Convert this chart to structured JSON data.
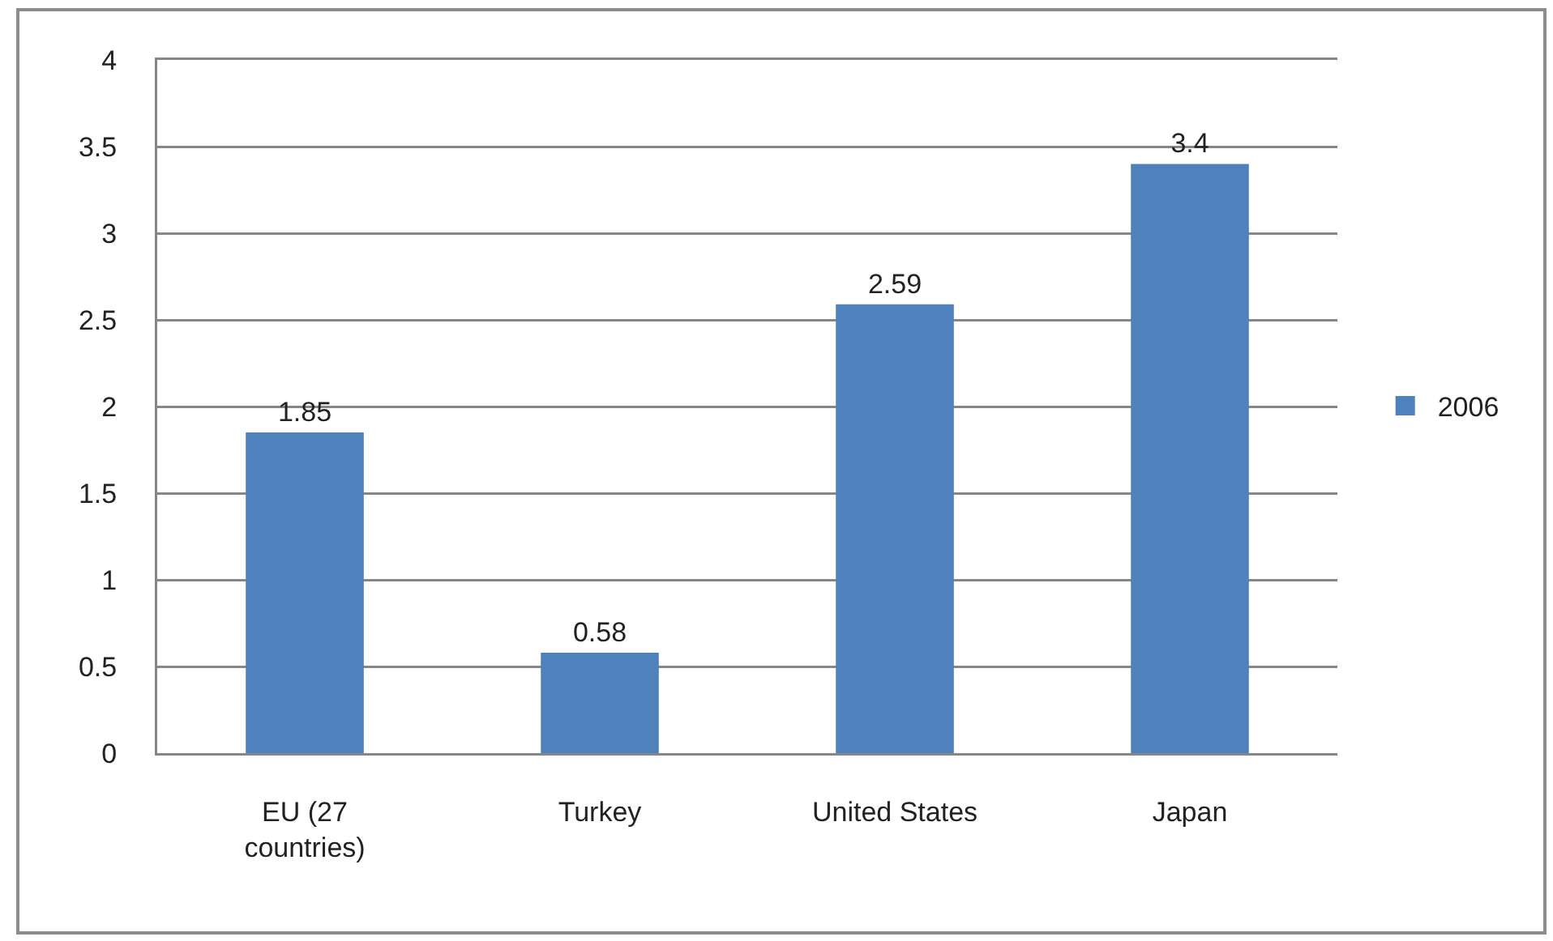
{
  "chart_data": {
    "type": "bar",
    "categories": [
      "EU (27 countries)",
      "Turkey",
      "United States",
      "Japan"
    ],
    "series": [
      {
        "name": "2006",
        "color": "#4f81bd",
        "values": [
          1.85,
          0.58,
          2.59,
          3.4
        ]
      }
    ],
    "ylim": [
      0,
      4
    ],
    "yticks": [
      0,
      0.5,
      1,
      1.5,
      2,
      2.5,
      3,
      3.5,
      4
    ],
    "grid": "y",
    "legend": "right",
    "data_labels": true
  }
}
